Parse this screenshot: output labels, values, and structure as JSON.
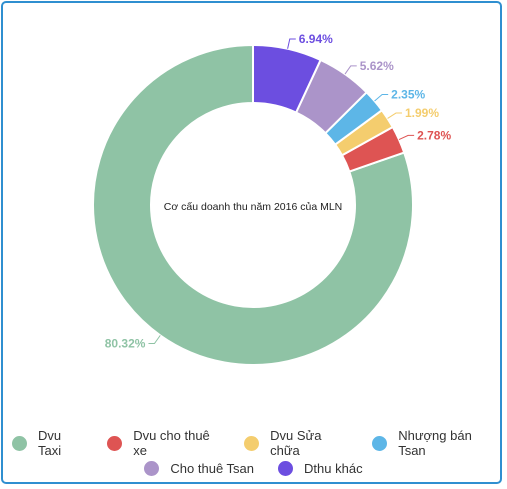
{
  "chart_data": {
    "type": "pie",
    "title": "Cơ cấu doanh thu năm 2016 của MLN",
    "donut": true,
    "legend_position": "bottom",
    "slices": [
      {
        "label": "Dvu Taxi",
        "value": 80.32,
        "value_label": "80.32%",
        "color": "#8fc3a5"
      },
      {
        "label": "Dvu cho thuê xe",
        "value": 2.78,
        "value_label": "2.78%",
        "color": "#de5453"
      },
      {
        "label": "Dvu Sửa chữa",
        "value": 1.99,
        "value_label": "1.99%",
        "color": "#f4cd6e"
      },
      {
        "label": "Nhượng bán Tsan",
        "value": 2.35,
        "value_label": "2.35%",
        "color": "#5db6e7"
      },
      {
        "label": "Cho thuê Tsan",
        "value": 5.62,
        "value_label": "5.62%",
        "color": "#ab94c9"
      },
      {
        "label": "Dthu khác",
        "value": 6.94,
        "value_label": "6.94%",
        "color": "#6c4ee0"
      }
    ]
  }
}
